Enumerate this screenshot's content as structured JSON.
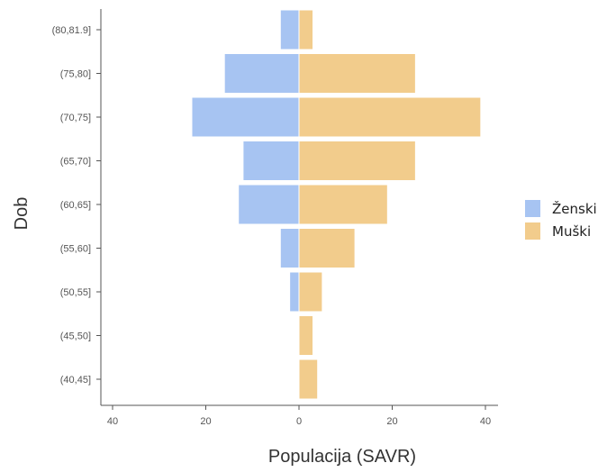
{
  "chart_data": {
    "type": "bar",
    "orientation": "horizontal",
    "layout": "population-pyramid",
    "categories": [
      "(40,45]",
      "(45,50]",
      "(50,55]",
      "(55,60]",
      "(60,65]",
      "(65,70]",
      "(70,75]",
      "(75,80]",
      "(80,81.9]"
    ],
    "series": [
      {
        "name": "Ženski",
        "color": "#a7c4f2",
        "values": [
          0,
          0,
          -2,
          -4,
          -13,
          -12,
          -23,
          -16,
          -4
        ]
      },
      {
        "name": "Muški",
        "color": "#f2cc8c",
        "values": [
          4,
          3,
          5,
          12,
          19,
          25,
          39,
          25,
          3
        ]
      }
    ],
    "xlabel": "Populacija (SAVR)",
    "ylabel": "Dob",
    "xlim": [
      -42,
      42
    ],
    "xticks": [
      -40,
      -20,
      0,
      20,
      40
    ],
    "xtick_labels": [
      "40",
      "20",
      "0",
      "20",
      "40"
    ],
    "grid": false,
    "legend_position": "right"
  }
}
